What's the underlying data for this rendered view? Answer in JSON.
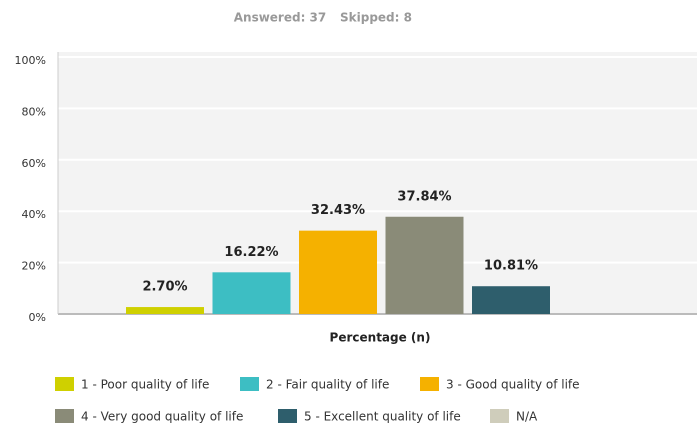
{
  "chart_data": {
    "type": "bar",
    "summary": {
      "answered": "Answered: 37",
      "skipped": "Skipped: 8"
    },
    "x_label": "Percentage (n)",
    "categories": [
      "Percentage (n)"
    ],
    "series": [
      {
        "name": "1 - Poor quality of life",
        "color": "#cfd000",
        "values": [
          2.7
        ],
        "value_labels": [
          "2.70%"
        ]
      },
      {
        "name": "2 - Fair quality of life",
        "color": "#3dbec3",
        "values": [
          16.22
        ],
        "value_labels": [
          "16.22%"
        ]
      },
      {
        "name": "3 - Good quality of life",
        "color": "#f5b100",
        "values": [
          32.43
        ],
        "value_labels": [
          "32.43%"
        ]
      },
      {
        "name": "4 - Very good quality of life",
        "color": "#8a8b78",
        "values": [
          37.84
        ],
        "value_labels": [
          "37.84%"
        ]
      },
      {
        "name": "5 - Excellent quality of life",
        "color": "#2e5e6c",
        "values": [
          10.81
        ],
        "value_labels": [
          "10.81%"
        ]
      },
      {
        "name": "N/A",
        "color": "#cfcdbb",
        "values": [
          null
        ]
      }
    ],
    "ylim": [
      0,
      100
    ],
    "yticks": [
      {
        "value": 0,
        "label": "0%"
      },
      {
        "value": 20,
        "label": "20%"
      },
      {
        "value": 40,
        "label": "40%"
      },
      {
        "value": 60,
        "label": "60%"
      },
      {
        "value": 80,
        "label": "80%"
      },
      {
        "value": 100,
        "label": "100%"
      }
    ],
    "grid": true
  }
}
